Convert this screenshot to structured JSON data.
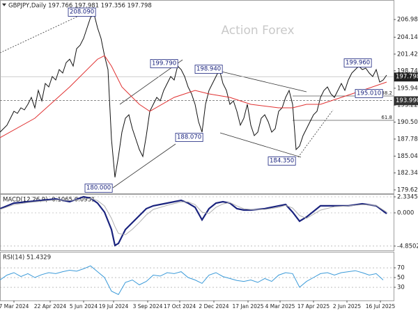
{
  "chart_data": [
    {
      "type": "line",
      "title": "GBPJPY,Daily 197.766 197.981 197.356 197.798",
      "watermark": "Action Forex",
      "xlim": [
        0,
        113
      ],
      "ylim": [
        179.06,
        210.11
      ],
      "yticks": [
        {
          "value": 206.98,
          "label": "206.980"
        },
        {
          "value": 204.14,
          "label": "204.140"
        },
        {
          "value": 201.42,
          "label": "201.420"
        },
        {
          "value": 198.74,
          "label": "198.740"
        },
        {
          "value": 195.94,
          "label": "195.940"
        },
        {
          "value": 193.22,
          "label": "193.220"
        },
        {
          "value": 190.5,
          "label": "190.500"
        },
        {
          "value": 187.78,
          "label": "187.780"
        },
        {
          "value": 185.04,
          "label": "185.040"
        },
        {
          "value": 182.34,
          "label": "182.340"
        },
        {
          "value": 179.62,
          "label": "179.620"
        }
      ],
      "series": [
        {
          "color": "#111111",
          "values": [
            188.89,
            189.45,
            190.01,
            191.12,
            192.24,
            191.9,
            192.8,
            192.46,
            193.36,
            194.47,
            192.8,
            195.59,
            193.91,
            196.71,
            196.15,
            197.82,
            197.26,
            198.94,
            198.38,
            200.06,
            200.61,
            199.5,
            202.29,
            202.85,
            203.96,
            205.64,
            207.32,
            207.87,
            205.64,
            203.96,
            201.17,
            198.94,
            187.77,
            181.63,
            184.98,
            188.89,
            191.12,
            191.68,
            189.45,
            187.77,
            186.1,
            184.98,
            188.33,
            192.24,
            193.36,
            194.47,
            193.91,
            195.59,
            196.71,
            197.82,
            197.26,
            199.5,
            198.94,
            197.82,
            196.15,
            195.03,
            193.36,
            190.56,
            188.89,
            193.36,
            195.59,
            196.71,
            197.82,
            198.94,
            196.71,
            195.59,
            193.36,
            193.91,
            192.24,
            190.01,
            191.12,
            193.36,
            190.01,
            188.33,
            188.89,
            191.12,
            191.68,
            190.56,
            188.89,
            189.45,
            192.24,
            192.8,
            194.47,
            195.59,
            193.36,
            186.1,
            186.66,
            188.33,
            189.45,
            190.56,
            191.68,
            192.24,
            194.47,
            195.59,
            196.15,
            195.03,
            194.47,
            195.59,
            196.71,
            195.59,
            197.26,
            198.38,
            198.94,
            199.5,
            198.94,
            199.16,
            198.38,
            197.82,
            198.94,
            196.93,
            197.26,
            198.05
          ]
        },
        {
          "color": "#e03030",
          "x": [
            0,
            10,
            20,
            28,
            30,
            32,
            35,
            40,
            43,
            50,
            56,
            60,
            66,
            72,
            80,
            84,
            88,
            92,
            98,
            104,
            111
          ],
          "values": [
            188.0,
            191.12,
            196.15,
            200.61,
            201.17,
            199.5,
            196.15,
            193.36,
            192.24,
            194.47,
            195.59,
            195.03,
            194.47,
            193.36,
            192.8,
            192.8,
            193.36,
            193.36,
            194.47,
            195.59,
            196.93
          ]
        }
      ],
      "annotations": [
        {
          "value": 208.09,
          "label": "208.090"
        },
        {
          "value": 199.79,
          "label": "199.790"
        },
        {
          "value": 198.94,
          "label": "198.940"
        },
        {
          "value": 188.07,
          "label": "188.070"
        },
        {
          "value": 180.0,
          "label": "180.000"
        },
        {
          "value": 184.35,
          "label": "184.350"
        },
        {
          "value": 199.96,
          "label": "199.960"
        },
        {
          "value": 195.01,
          "label": "195.010"
        }
      ],
      "last_price": {
        "value": 197.798,
        "label": "197.798"
      },
      "level": {
        "value": 193.99,
        "label": "193.990"
      },
      "fib_levels": [
        {
          "ratio": 38.2,
          "value": 194.7
        },
        {
          "ratio": 61.8,
          "value": 190.79
        }
      ]
    },
    {
      "type": "line",
      "title": "MACD(12,26,9) -0.1065 0.0931",
      "xlim": [
        0,
        113
      ],
      "ylim": [
        -5.48,
        2.74
      ],
      "yticks": [
        {
          "value": 2.3345,
          "label": "2.3345"
        },
        {
          "value": 0,
          "label": "0.000"
        },
        -4.8502
      ],
      "x": [
        0,
        4,
        8,
        12,
        16,
        20,
        24,
        26,
        28,
        30,
        32,
        33,
        34,
        36,
        38,
        40,
        42,
        44,
        48,
        52,
        54,
        56,
        58,
        60,
        62,
        64,
        66,
        68,
        70,
        72,
        76,
        80,
        82,
        84,
        86,
        88,
        92,
        96,
        100,
        104,
        108,
        111
      ],
      "series": [
        {
          "color": "#1a237e",
          "values": [
            0.61,
            1.42,
            1.62,
            1.83,
            2.03,
            1.62,
            2.34,
            2.13,
            1.42,
            0.1,
            -2.44,
            -4.75,
            -4.47,
            -2.44,
            -1.42,
            -0.41,
            0.61,
            1.02,
            1.42,
            1.83,
            1.42,
            0.81,
            -1.02,
            0.61,
            1.42,
            1.62,
            1.42,
            0.61,
            0.41,
            0.41,
            0.61,
            1.02,
            1.22,
            0.1,
            -1.22,
            -0.61,
            1.02,
            1.02,
            1.02,
            1.32,
            1.02,
            -0.11
          ]
        },
        {
          "color": "#b0b0b0",
          "values": [
            0.5,
            1.2,
            1.5,
            1.7,
            1.9,
            1.8,
            2.0,
            2.1,
            1.8,
            1.0,
            -0.8,
            -2.0,
            -3.0,
            -3.2,
            -2.4,
            -1.4,
            -0.3,
            0.5,
            1.1,
            1.6,
            1.6,
            1.2,
            0.1,
            -0.1,
            0.8,
            1.3,
            1.5,
            1.0,
            0.6,
            0.5,
            0.5,
            0.8,
            1.1,
            0.7,
            -0.4,
            -0.8,
            0.4,
            0.9,
            1.0,
            1.2,
            1.1,
            0.09
          ]
        }
      ]
    },
    {
      "type": "line",
      "title": "RSI(14) 51.4329",
      "xlim": [
        0,
        113
      ],
      "ylim": [
        2.9,
        102.9
      ],
      "yticks": [
        70,
        50,
        30
      ],
      "x": [
        0,
        2,
        4,
        6,
        8,
        10,
        12,
        14,
        16,
        18,
        20,
        22,
        24,
        26,
        28,
        30,
        32,
        34,
        36,
        38,
        40,
        42,
        44,
        46,
        48,
        50,
        52,
        54,
        56,
        58,
        60,
        62,
        64,
        66,
        68,
        70,
        72,
        74,
        76,
        78,
        80,
        82,
        84,
        86,
        88,
        90,
        92,
        94,
        96,
        98,
        100,
        102,
        104,
        106,
        108,
        110
      ],
      "series": [
        {
          "color": "#3a9ad9",
          "values": [
            45,
            55,
            60,
            52,
            58,
            50,
            56,
            60,
            58,
            62,
            65,
            63,
            68,
            74,
            62,
            50,
            22,
            15,
            40,
            45,
            35,
            42,
            55,
            53,
            60,
            58,
            62,
            50,
            45,
            38,
            55,
            60,
            52,
            48,
            44,
            42,
            45,
            40,
            48,
            42,
            55,
            60,
            58,
            30,
            42,
            50,
            58,
            60,
            55,
            60,
            62,
            64,
            60,
            55,
            58,
            45
          ]
        }
      ],
      "xticks": [
        {
          "value": 4,
          "label": "7 Mar 2024"
        },
        {
          "value": 14.4,
          "label": "22 Apr 2024"
        },
        {
          "value": 24,
          "label": "5 Jun 2024"
        },
        {
          "value": 32.6,
          "label": "19 Jul 2024"
        },
        {
          "value": 42.4,
          "label": "3 Sep 2024"
        },
        {
          "value": 51.6,
          "label": "17 Oct 2024"
        },
        {
          "value": 61.4,
          "label": "2 Dec 2024"
        },
        {
          "value": 71.2,
          "label": "17 Jan 2025"
        },
        {
          "value": 80.4,
          "label": "4 Mar 2025"
        },
        {
          "value": 90,
          "label": "17 Apr 2025"
        },
        {
          "value": 99.6,
          "label": "2 Jun 2025"
        },
        {
          "value": 109.2,
          "label": "16 Jul 2025"
        }
      ]
    }
  ]
}
